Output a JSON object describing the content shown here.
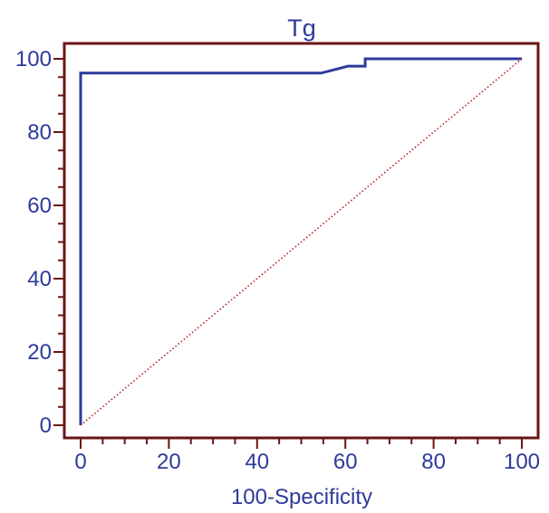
{
  "colors": {
    "frame": "#6b1414",
    "roc_line": "#2e3a9a",
    "diagonal": "#b22222",
    "text": "#2e3a9a"
  },
  "chart_data": {
    "type": "line",
    "title": "Tg",
    "xlabel": "100-Specificity",
    "ylabel": "",
    "xlim": [
      0,
      100
    ],
    "ylim": [
      0,
      100
    ],
    "xticks": [
      0,
      20,
      40,
      60,
      80,
      100
    ],
    "yticks": [
      0,
      20,
      40,
      60,
      80,
      100
    ],
    "minor_tick_step": 5,
    "grid": false,
    "legend": "none",
    "series": [
      {
        "style": "solid",
        "x": [
          0,
          0,
          54.5,
          60.6,
          64.5,
          64.5,
          100
        ],
        "y": [
          0,
          96.1,
          96.1,
          98,
          98,
          100,
          100
        ]
      },
      {
        "style": "dotted",
        "x": [
          0,
          100
        ],
        "y": [
          0,
          100
        ]
      }
    ]
  }
}
